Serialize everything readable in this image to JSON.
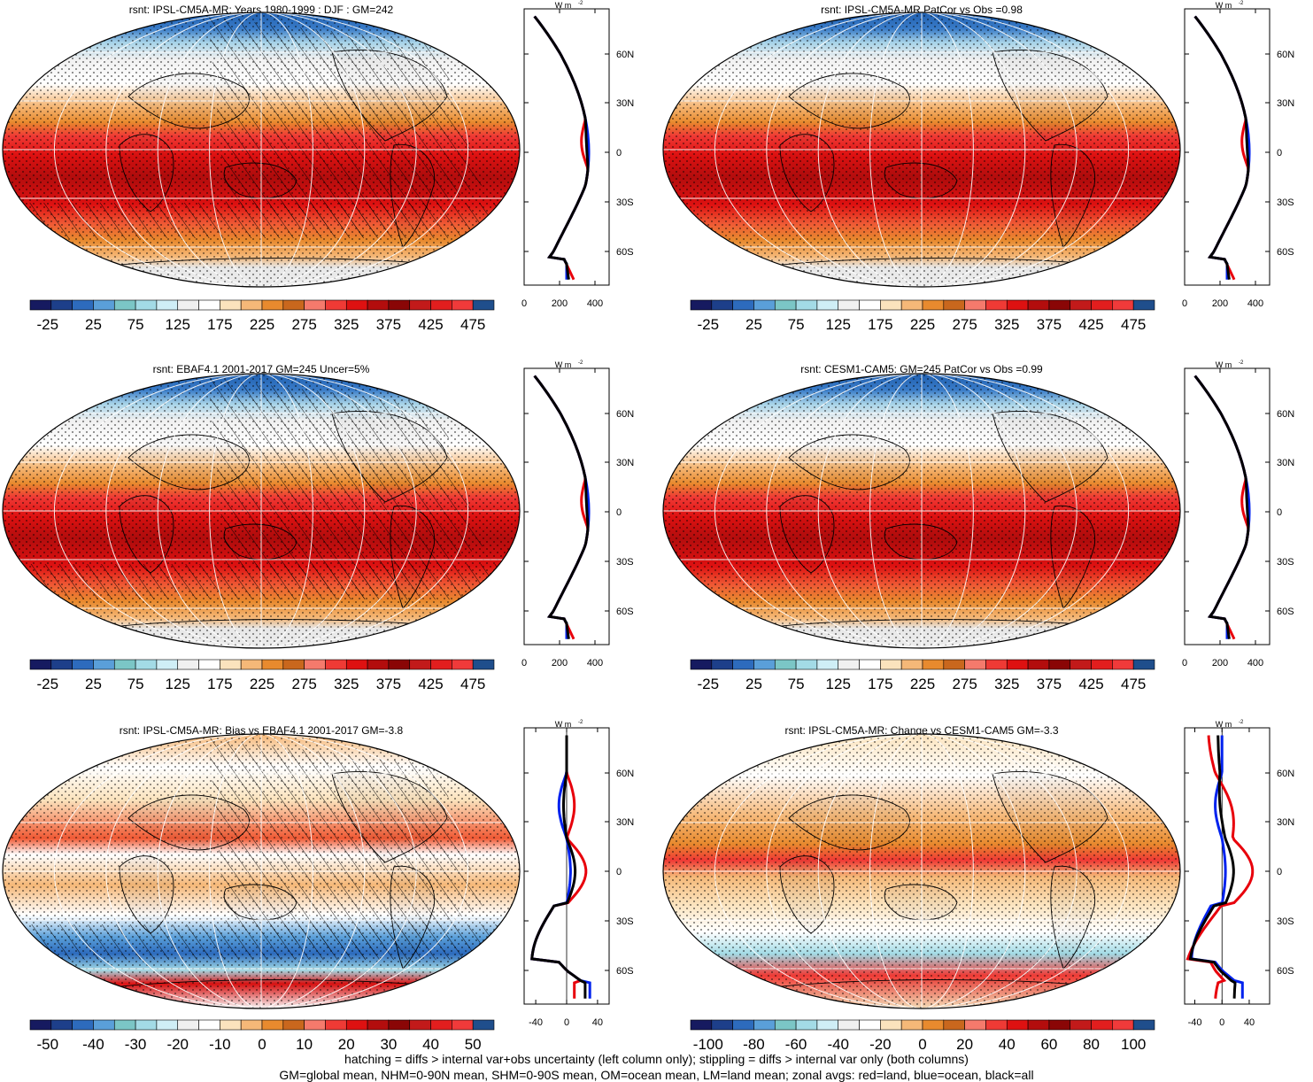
{
  "footnote": {
    "line1": "hatching = diffs > internal var+obs uncertainty (left column only); stippling = diffs > internal var only (both columns)",
    "line2": "GM=global mean, NHM=0-90N mean, SHM=0-90S mean, OM=ocean mean, LM=land mean; zonal avgs: red=land, blue=ocean, black=all"
  },
  "lat_labels": [
    "60N",
    "30N",
    "0",
    "30S",
    "60S"
  ],
  "zonal_unit": "W m",
  "zonal_unit_exp": "-2",
  "colors": {
    "land": "#e8000b",
    "ocean": "#0022ee",
    "all": "#000000",
    "grid": "#ffffff"
  },
  "abs_palette": [
    "#161a60",
    "#1d3f8a",
    "#2d6bbd",
    "#5a9fd9",
    "#7bc6c6",
    "#a3dbe6",
    "#cfeef6",
    "#f0f0f0",
    "#ffffff",
    "#fbe3bd",
    "#f5b878",
    "#e88a2e",
    "#c9671d",
    "#f57a6c",
    "#ef3a35",
    "#de1111",
    "#b30d0d",
    "#8a0606",
    "#c21a1a",
    "#e21e1e",
    "#f03a3a",
    "#1f4e8c"
  ],
  "bias_palette": [
    "#161a60",
    "#1d3f8a",
    "#2d6bbd",
    "#5a9fd9",
    "#7bc6c6",
    "#a3dbe6",
    "#cfeef6",
    "#f0f0f0",
    "#ffffff",
    "#fbe3bd",
    "#f5b878",
    "#e88a2e",
    "#c9671d",
    "#f57a6c",
    "#ef3a35",
    "#de1111",
    "#b30d0d",
    "#8a0606",
    "#c21a1a",
    "#e21e1e",
    "#f03a3a",
    "#1f4e8c"
  ],
  "panels": [
    {
      "id": "a",
      "title": "rsnt: IPSL-CM5A-MR: Years 1980-1999 : DJF : GM=242",
      "kind": "abs",
      "colorbar_ticks": [
        "-25",
        "25",
        "75",
        "125",
        "175",
        "225",
        "275",
        "325",
        "375",
        "425",
        "475"
      ],
      "zonal_ticks": [
        "0",
        "200",
        "400"
      ],
      "zonal_range": [
        0,
        480
      ],
      "zonal_tick_values": [
        0,
        200,
        400
      ],
      "zero_line": false,
      "hatched": true
    },
    {
      "id": "b",
      "title": "rsnt: IPSL-CM5A-MR PatCor vs Obs =0.98",
      "kind": "abs",
      "colorbar_ticks": [
        "-25",
        "25",
        "75",
        "125",
        "175",
        "225",
        "275",
        "325",
        "375",
        "425",
        "475"
      ],
      "zonal_ticks": [
        "0",
        "200",
        "400"
      ],
      "zonal_range": [
        0,
        480
      ],
      "zonal_tick_values": [
        0,
        200,
        400
      ],
      "zero_line": false,
      "hatched": false
    },
    {
      "id": "c",
      "title": "rsnt: EBAF4.1 2001-2017 GM=245 Uncer=5%",
      "kind": "abs",
      "colorbar_ticks": [
        "-25",
        "25",
        "75",
        "125",
        "175",
        "225",
        "275",
        "325",
        "375",
        "425",
        "475"
      ],
      "zonal_ticks": [
        "0",
        "200",
        "400"
      ],
      "zonal_range": [
        0,
        480
      ],
      "zonal_tick_values": [
        0,
        200,
        400
      ],
      "zero_line": false,
      "hatched": true
    },
    {
      "id": "d",
      "title": "rsnt: CESM1-CAM5: GM=245 PatCor vs Obs =0.99",
      "kind": "abs",
      "colorbar_ticks": [
        "-25",
        "25",
        "75",
        "125",
        "175",
        "225",
        "275",
        "325",
        "375",
        "425",
        "475"
      ],
      "zonal_ticks": [
        "0",
        "200",
        "400"
      ],
      "zonal_range": [
        0,
        480
      ],
      "zonal_tick_values": [
        0,
        200,
        400
      ],
      "zero_line": false,
      "hatched": false
    },
    {
      "id": "e",
      "title": "rsnt: IPSL-CM5A-MR: Bias vs EBAF4.1 2001-2017 GM=-3.8",
      "kind": "bias",
      "colorbar_ticks": [
        "-50",
        "-40",
        "-30",
        "-20",
        "-10",
        "0",
        "10",
        "20",
        "30",
        "40",
        "50"
      ],
      "zonal_ticks": [
        "-40",
        "0",
        "40"
      ],
      "zonal_range": [
        -55,
        55
      ],
      "zonal_tick_values": [
        -40,
        0,
        40
      ],
      "zero_line": true,
      "hatched": true
    },
    {
      "id": "f",
      "title": "rsnt: IPSL-CM5A-MR: Change vs CESM1-CAM5 GM=-3.3",
      "kind": "change",
      "colorbar_ticks": [
        "-100",
        "-80",
        "-60",
        "-40",
        "-20",
        "0",
        "20",
        "40",
        "60",
        "80",
        "100"
      ],
      "zonal_ticks": [
        "-40",
        "0",
        "40"
      ],
      "zonal_range": [
        -55,
        70
      ],
      "zonal_tick_values": [
        -40,
        0,
        40
      ],
      "zero_line": true,
      "hatched": false
    }
  ]
}
